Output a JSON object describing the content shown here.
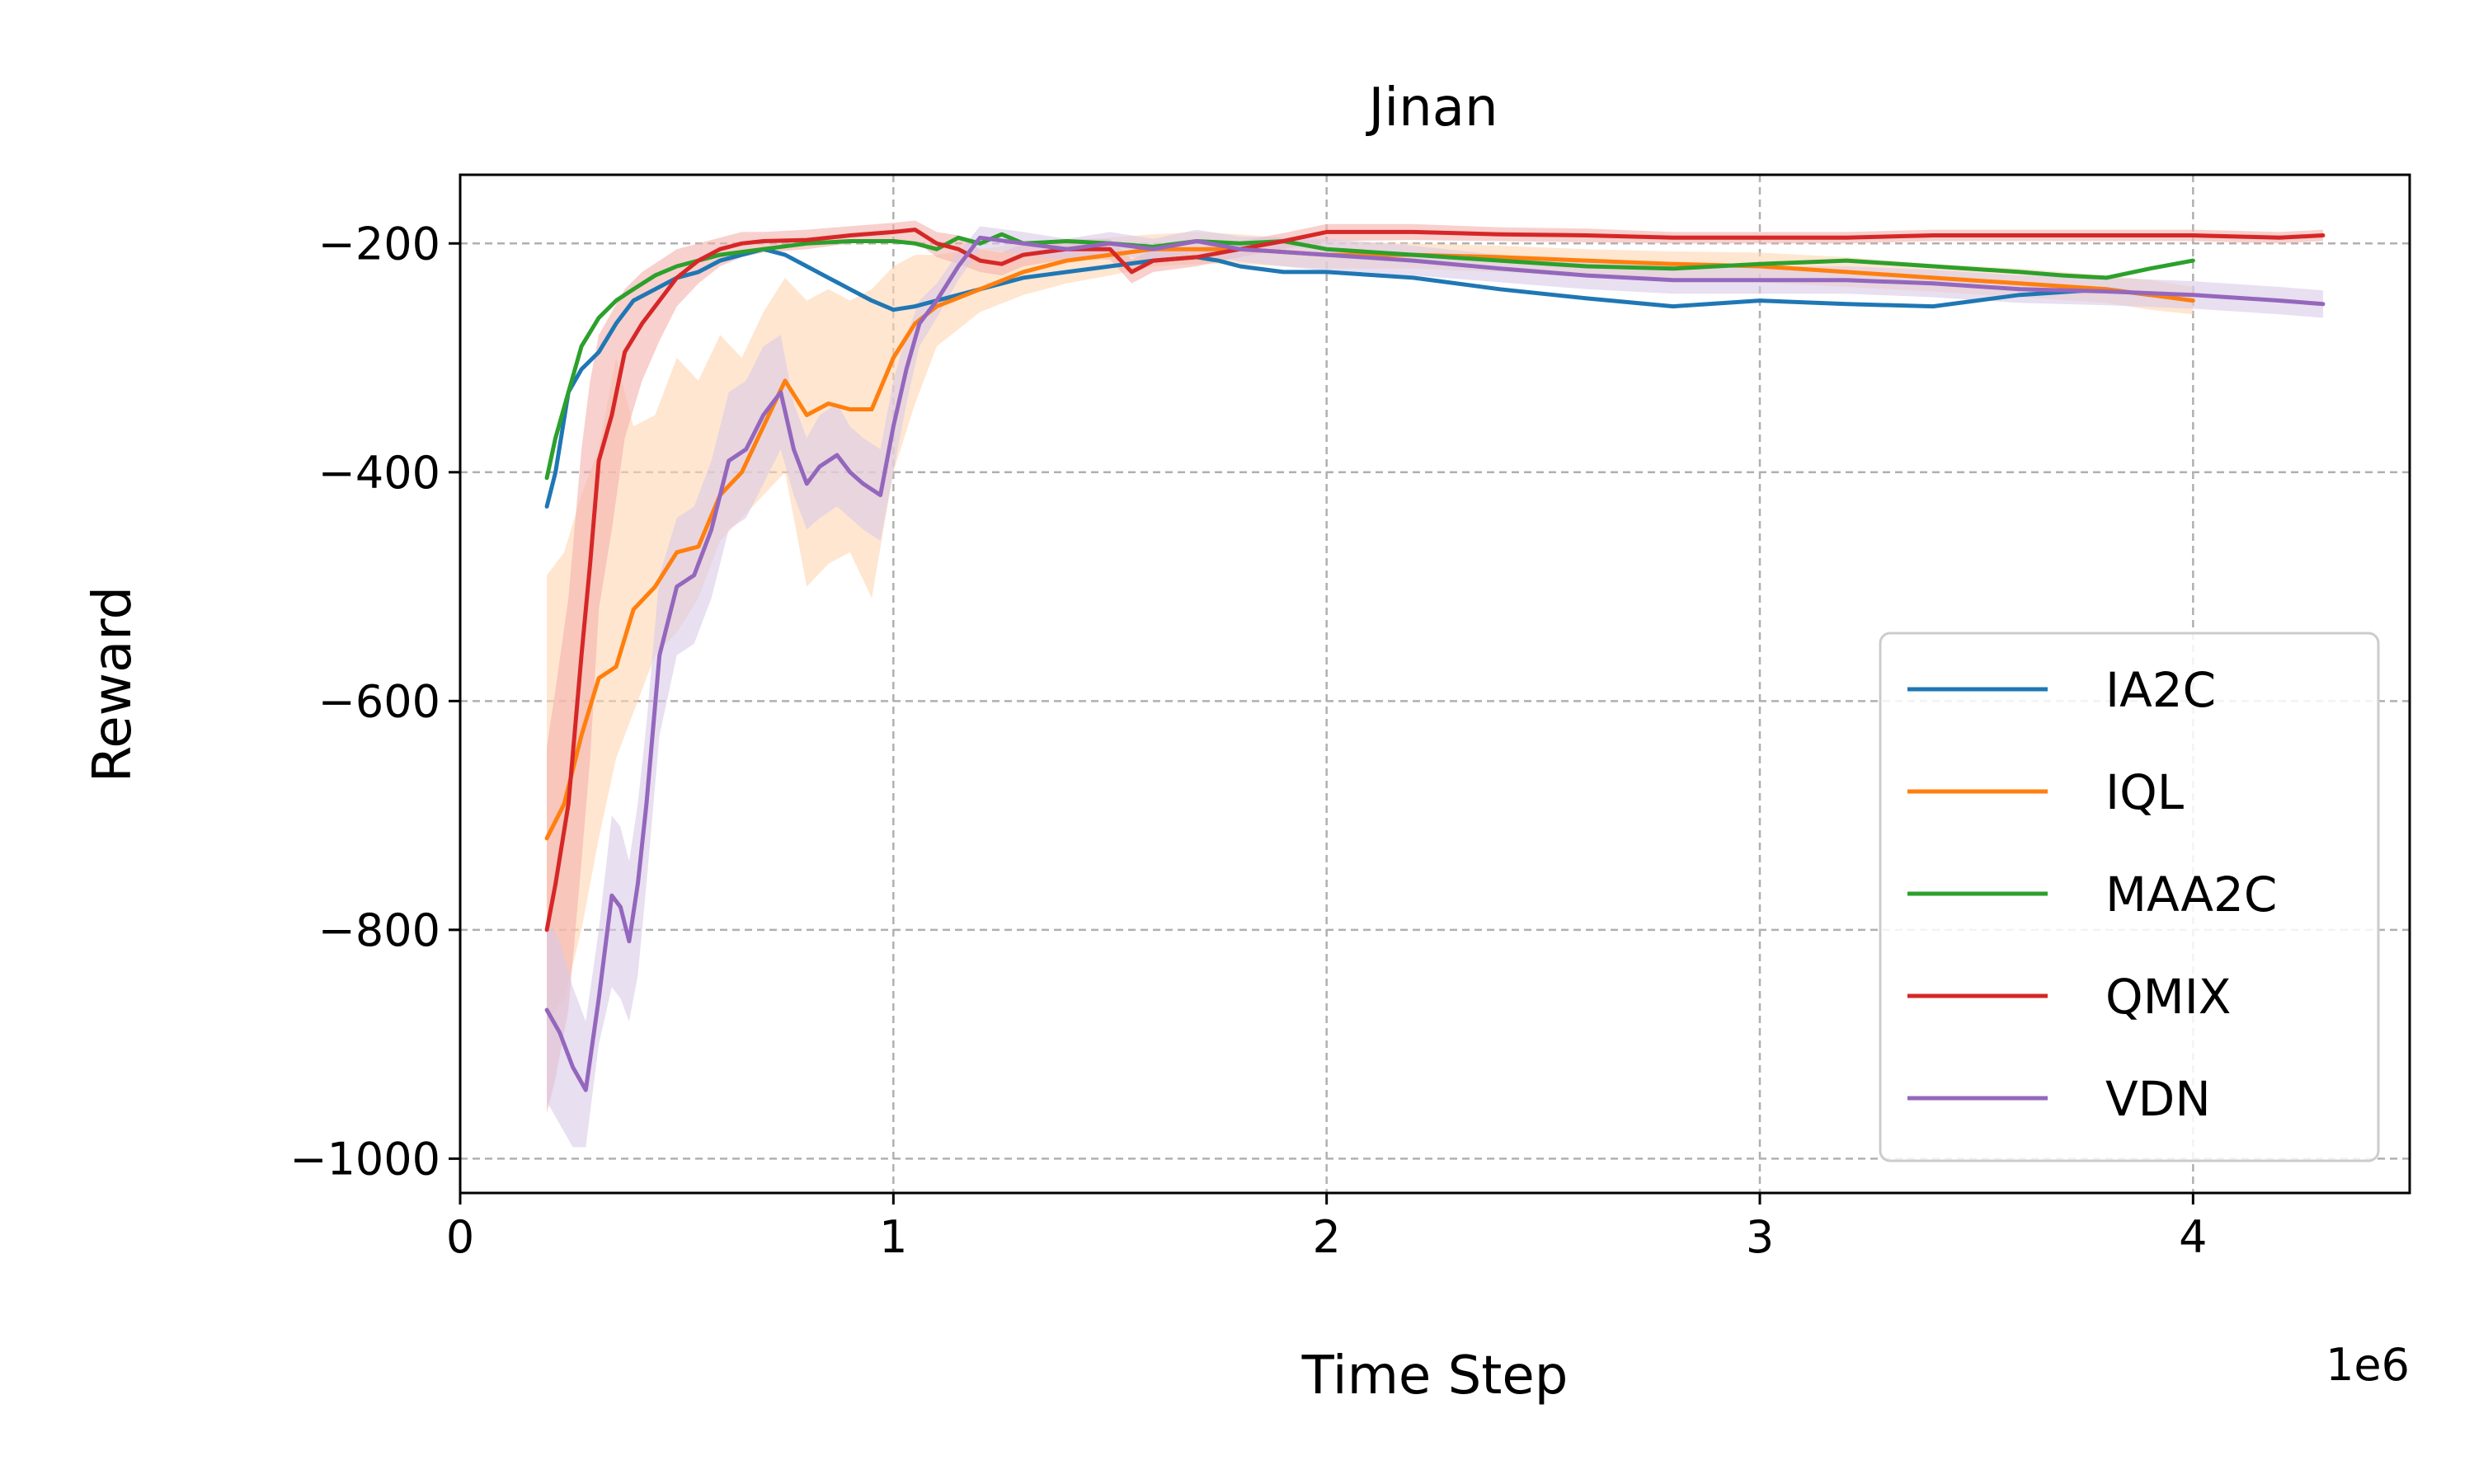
{
  "chart_data": {
    "type": "line",
    "title": "Jinan",
    "xlabel": "Time Step",
    "ylabel": "Reward",
    "x_offset_text": "1e6",
    "xlim": [
      0,
      4.5
    ],
    "ylim": [
      -1030,
      -140
    ],
    "x_ticks": [
      0,
      1,
      2,
      3,
      4
    ],
    "x_tick_labels": [
      "0",
      "1",
      "2",
      "3",
      "4"
    ],
    "y_ticks": [
      -200,
      -400,
      -600,
      -800,
      -1000
    ],
    "y_tick_labels": [
      "−200",
      "−400",
      "−600",
      "−800",
      "−1000"
    ],
    "grid": true,
    "legend_position": "lower-right",
    "series": [
      {
        "name": "IA2C",
        "color": "#1f77b4",
        "x": [
          0.2,
          0.22,
          0.25,
          0.28,
          0.32,
          0.36,
          0.4,
          0.45,
          0.5,
          0.55,
          0.6,
          0.65,
          0.7,
          0.75,
          0.8,
          0.85,
          0.9,
          0.95,
          1.0,
          1.05,
          1.1,
          1.2,
          1.3,
          1.4,
          1.5,
          1.6,
          1.7,
          1.75,
          1.8,
          1.9,
          2.0,
          2.2,
          2.4,
          2.6,
          2.8,
          3.0,
          3.2,
          3.4,
          3.6,
          3.8,
          3.9
        ],
        "y": [
          -430,
          -400,
          -330,
          -310,
          -295,
          -270,
          -250,
          -240,
          -230,
          -225,
          -215,
          -210,
          -205,
          -210,
          -220,
          -230,
          -240,
          -250,
          -258,
          -255,
          -250,
          -240,
          -230,
          -225,
          -220,
          -215,
          -212,
          -215,
          -220,
          -225,
          -225,
          -230,
          -240,
          -248,
          -255,
          -250,
          -253,
          -255,
          -245,
          -240,
          -245
        ]
      },
      {
        "name": "IQL",
        "color": "#ff7f0e",
        "band_color": "#ffd6b0",
        "x": [
          0.2,
          0.24,
          0.28,
          0.32,
          0.36,
          0.4,
          0.45,
          0.5,
          0.55,
          0.6,
          0.65,
          0.7,
          0.75,
          0.8,
          0.85,
          0.9,
          0.95,
          1.0,
          1.05,
          1.1,
          1.2,
          1.3,
          1.4,
          1.5,
          1.6,
          1.7,
          1.8,
          2.0,
          2.2,
          2.4,
          2.6,
          2.8,
          3.0,
          3.2,
          3.4,
          3.6,
          3.8,
          3.9,
          4.0
        ],
        "y": [
          -720,
          -690,
          -630,
          -580,
          -570,
          -520,
          -500,
          -470,
          -465,
          -420,
          -400,
          -360,
          -320,
          -350,
          -340,
          -345,
          -345,
          -300,
          -270,
          -255,
          -240,
          -225,
          -215,
          -210,
          -205,
          -205,
          -205,
          -210,
          -210,
          -212,
          -215,
          -218,
          -220,
          -225,
          -230,
          -235,
          -240,
          -245,
          -250
        ],
        "lower": [
          -880,
          -860,
          -800,
          -720,
          -650,
          -610,
          -560,
          -540,
          -510,
          -460,
          -440,
          -420,
          -400,
          -500,
          -480,
          -470,
          -510,
          -400,
          -340,
          -290,
          -260,
          -245,
          -235,
          -228,
          -220,
          -218,
          -218,
          -222,
          -222,
          -225,
          -228,
          -232,
          -234,
          -238,
          -242,
          -247,
          -252,
          -258,
          -262
        ],
        "upper": [
          -490,
          -470,
          -420,
          -380,
          -300,
          -360,
          -350,
          -300,
          -320,
          -280,
          -300,
          -260,
          -230,
          -250,
          -240,
          -250,
          -240,
          -220,
          -210,
          -210,
          -205,
          -200,
          -198,
          -195,
          -192,
          -190,
          -192,
          -198,
          -200,
          -202,
          -205,
          -207,
          -208,
          -212,
          -218,
          -222,
          -228,
          -232,
          -238
        ]
      },
      {
        "name": "MAA2C",
        "color": "#2ca02c",
        "x": [
          0.2,
          0.22,
          0.25,
          0.28,
          0.32,
          0.36,
          0.4,
          0.45,
          0.5,
          0.6,
          0.7,
          0.8,
          0.9,
          1.0,
          1.05,
          1.1,
          1.15,
          1.2,
          1.25,
          1.3,
          1.4,
          1.5,
          1.6,
          1.7,
          1.8,
          1.9,
          2.0,
          2.2,
          2.4,
          2.6,
          2.8,
          3.0,
          3.2,
          3.4,
          3.6,
          3.7,
          3.8,
          3.9,
          4.0
        ],
        "y": [
          -405,
          -370,
          -330,
          -290,
          -265,
          -250,
          -240,
          -228,
          -220,
          -210,
          -205,
          -200,
          -198,
          -198,
          -200,
          -205,
          -195,
          -200,
          -192,
          -200,
          -198,
          -200,
          -203,
          -198,
          -200,
          -198,
          -205,
          -210,
          -215,
          -220,
          -222,
          -218,
          -215,
          -220,
          -225,
          -228,
          -230,
          -222,
          -215
        ]
      },
      {
        "name": "QMIX",
        "color": "#d62728",
        "band_color": "#f4b1ab",
        "x": [
          0.2,
          0.22,
          0.25,
          0.28,
          0.3,
          0.32,
          0.35,
          0.38,
          0.42,
          0.46,
          0.5,
          0.55,
          0.6,
          0.65,
          0.7,
          0.8,
          0.9,
          1.0,
          1.05,
          1.1,
          1.15,
          1.2,
          1.25,
          1.3,
          1.4,
          1.5,
          1.55,
          1.6,
          1.7,
          1.8,
          1.9,
          2.0,
          2.2,
          2.4,
          2.6,
          2.8,
          3.0,
          3.2,
          3.4,
          3.6,
          3.8,
          4.0,
          4.2,
          4.3
        ],
        "y": [
          -800,
          -760,
          -690,
          -560,
          -480,
          -390,
          -350,
          -295,
          -270,
          -250,
          -230,
          -215,
          -205,
          -200,
          -198,
          -197,
          -193,
          -190,
          -188,
          -200,
          -205,
          -215,
          -218,
          -210,
          -205,
          -205,
          -225,
          -215,
          -212,
          -205,
          -198,
          -190,
          -190,
          -192,
          -193,
          -195,
          -195,
          -195,
          -193,
          -193,
          -193,
          -193,
          -195,
          -193
        ],
        "lower": [
          -960,
          -930,
          -870,
          -740,
          -650,
          -520,
          -450,
          -370,
          -320,
          -285,
          -255,
          -235,
          -220,
          -212,
          -208,
          -205,
          -200,
          -198,
          -198,
          -212,
          -218,
          -225,
          -228,
          -220,
          -214,
          -214,
          -235,
          -225,
          -220,
          -212,
          -205,
          -198,
          -197,
          -198,
          -199,
          -200,
          -200,
          -200,
          -198,
          -198,
          -198,
          -198,
          -200,
          -198
        ],
        "upper": [
          -640,
          -590,
          -510,
          -380,
          -320,
          -280,
          -260,
          -240,
          -225,
          -215,
          -205,
          -200,
          -195,
          -190,
          -190,
          -188,
          -185,
          -182,
          -180,
          -190,
          -193,
          -205,
          -208,
          -200,
          -196,
          -196,
          -214,
          -205,
          -204,
          -198,
          -191,
          -183,
          -183,
          -186,
          -187,
          -190,
          -190,
          -190,
          -188,
          -188,
          -188,
          -188,
          -190,
          -188
        ]
      },
      {
        "name": "VDN",
        "color": "#9467bd",
        "band_color": "#d9c9e8",
        "x": [
          0.2,
          0.23,
          0.26,
          0.29,
          0.32,
          0.35,
          0.37,
          0.39,
          0.41,
          0.43,
          0.46,
          0.5,
          0.54,
          0.58,
          0.62,
          0.66,
          0.7,
          0.74,
          0.77,
          0.8,
          0.83,
          0.87,
          0.9,
          0.93,
          0.97,
          1.0,
          1.03,
          1.06,
          1.1,
          1.15,
          1.2,
          1.3,
          1.4,
          1.5,
          1.6,
          1.7,
          1.8,
          2.0,
          2.2,
          2.4,
          2.6,
          2.8,
          3.0,
          3.2,
          3.4,
          3.6,
          3.8,
          4.0,
          4.2,
          4.3
        ],
        "y": [
          -870,
          -890,
          -920,
          -940,
          -860,
          -770,
          -780,
          -810,
          -760,
          -690,
          -560,
          -500,
          -490,
          -450,
          -390,
          -380,
          -350,
          -330,
          -380,
          -410,
          -395,
          -385,
          -400,
          -410,
          -420,
          -360,
          -310,
          -270,
          -250,
          -220,
          -195,
          -200,
          -205,
          -200,
          -205,
          -198,
          -205,
          -210,
          -215,
          -222,
          -228,
          -232,
          -232,
          -232,
          -235,
          -240,
          -242,
          -245,
          -250,
          -253
        ],
        "lower": [
          -950,
          -970,
          -990,
          -990,
          -900,
          -850,
          -860,
          -880,
          -840,
          -760,
          -630,
          -560,
          -550,
          -510,
          -450,
          -440,
          -410,
          -380,
          -420,
          -450,
          -440,
          -430,
          -440,
          -450,
          -460,
          -400,
          -340,
          -290,
          -265,
          -232,
          -205,
          -210,
          -214,
          -210,
          -214,
          -208,
          -216,
          -224,
          -228,
          -234,
          -240,
          -244,
          -244,
          -244,
          -247,
          -252,
          -254,
          -257,
          -262,
          -265
        ],
        "upper": [
          -790,
          -810,
          -850,
          -880,
          -800,
          -700,
          -710,
          -740,
          -690,
          -620,
          -490,
          -440,
          -430,
          -390,
          -330,
          -320,
          -290,
          -280,
          -340,
          -370,
          -350,
          -340,
          -360,
          -370,
          -380,
          -320,
          -280,
          -250,
          -235,
          -208,
          -185,
          -190,
          -196,
          -190,
          -196,
          -188,
          -194,
          -196,
          -202,
          -210,
          -216,
          -220,
          -220,
          -220,
          -223,
          -228,
          -230,
          -233,
          -238,
          -241
        ]
      }
    ]
  }
}
